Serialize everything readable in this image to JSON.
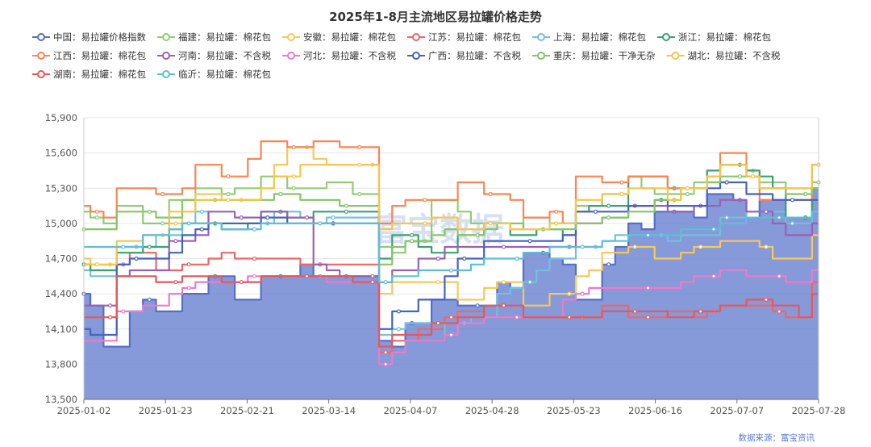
{
  "chart_data": {
    "type": "line",
    "title": "2025年1-8月主流地区易拉罐价格走势",
    "source": "数据来源：富宝资讯",
    "watermark": "富宝数据",
    "xlabel": "",
    "ylabel": "",
    "x_ticks": [
      "2025-01-02",
      "2025-01-23",
      "2025-02-21",
      "2025-03-14",
      "2025-04-07",
      "2025-04-28",
      "2025-05-23",
      "2025-06-16",
      "2025-07-07",
      "2025-07-28"
    ],
    "y_ticks": [
      "13,500",
      "13,800",
      "14,100",
      "14,400",
      "14,700",
      "15,000",
      "15,300",
      "15,600",
      "15,900"
    ],
    "ylim": [
      13500,
      15900
    ],
    "legend_position": "top",
    "area_series": "中国：易拉罐价格指数",
    "series": [
      {
        "name": "中国：易拉罐价格指数",
        "color": "#5470c6",
        "values": [
          14400,
          14300,
          13950,
          13950,
          14250,
          14350,
          14250,
          14250,
          14400,
          14400,
          14550,
          14550,
          14350,
          14350,
          14550,
          14550,
          14550,
          14650,
          14550,
          14550,
          14550,
          14550,
          14550,
          14000,
          13950,
          14150,
          14150,
          14350,
          14350,
          14300,
          14300,
          14300,
          14500,
          14450,
          14750,
          14750,
          14700,
          14650,
          14350,
          14350,
          14650,
          14800,
          15000,
          14950,
          15100,
          15100,
          15100,
          15050,
          15250,
          15250,
          15200,
          15050,
          15200,
          15200,
          15050,
          15050,
          15300
        ]
      },
      {
        "name": "福建：易拉罐：棉花包",
        "color": "#91cc75",
        "values": [
          15100,
          15050,
          15000,
          15150,
          15150,
          15000,
          15000,
          15200,
          15200,
          15300,
          15300,
          15250,
          15300,
          15300,
          15400,
          15400,
          15300,
          15300,
          15300,
          15350,
          15350,
          15250,
          15250,
          14800,
          14750,
          14850,
          14850,
          15200,
          15200,
          15100,
          15000,
          15000,
          15000,
          14950,
          15050,
          15050,
          15000,
          15000,
          15150,
          15150,
          15250,
          15250,
          15400,
          15300,
          15250,
          15250,
          15250,
          15350,
          15350,
          15500,
          15500,
          15450,
          15350,
          15350,
          15300,
          15300,
          15350
        ]
      },
      {
        "name": "安徽：易拉罐：棉花包",
        "color": "#fac858",
        "values": [
          14700,
          14650,
          14650,
          14800,
          14800,
          14900,
          14900,
          15000,
          15100,
          15250,
          15250,
          15200,
          15200,
          15200,
          15300,
          15500,
          15650,
          15650,
          15550,
          15500,
          15500,
          15500,
          15500,
          14400,
          14500,
          14500,
          14500,
          14500,
          14500,
          14350,
          14350,
          14450,
          14500,
          14500,
          14300,
          14300,
          14400,
          14400,
          14550,
          14600,
          14750,
          14750,
          14800,
          14800,
          14700,
          14700,
          14750,
          14800,
          14800,
          14850,
          14850,
          14850,
          14800,
          14700,
          14700,
          14700,
          14900
        ]
      },
      {
        "name": "江苏：易拉罐：棉花包",
        "color": "#ee6666",
        "values": [
          14650,
          14600,
          14600,
          14650,
          14750,
          14750,
          14600,
          14600,
          14650,
          14650,
          14700,
          14750,
          14700,
          14700,
          14700,
          14700,
          14700,
          14650,
          14650,
          14650,
          14650,
          14650,
          14650,
          13900,
          14000,
          14000,
          14100,
          14100,
          14200,
          14250,
          14250,
          14200,
          14200,
          14200,
          14200,
          14200,
          14200,
          14200,
          14200,
          14200,
          14300,
          14300,
          14200,
          14200,
          14200,
          14250,
          14250,
          14200,
          14250,
          14300,
          14300,
          14300,
          14300,
          14250,
          14200,
          14200,
          14500
        ]
      },
      {
        "name": "上海：易拉罐：棉花包",
        "color": "#73c0de",
        "values": [
          14600,
          14550,
          14550,
          14800,
          14800,
          14800,
          14900,
          14900,
          15000,
          15100,
          15000,
          14950,
          14950,
          15000,
          15000,
          15100,
          15100,
          15050,
          15000,
          15050,
          15050,
          15050,
          15050,
          14050,
          14100,
          14150,
          14150,
          14150,
          14050,
          14150,
          14200,
          14200,
          14400,
          14450,
          14500,
          14600,
          14700,
          14700,
          14800,
          14800,
          14850,
          14900,
          14900,
          14900,
          14900,
          14850,
          14900,
          14900,
          14900,
          15050,
          15050,
          15100,
          15100,
          15100,
          15000,
          15000,
          15100
        ]
      },
      {
        "name": "浙江：易拉罐：棉花包",
        "color": "#3ba272",
        "values": [
          14650,
          14600,
          14600,
          14750,
          14750,
          14800,
          14800,
          14950,
          15000,
          15000,
          15000,
          14950,
          14950,
          15000,
          15100,
          15100,
          15050,
          15050,
          15100,
          15100,
          15100,
          15100,
          15100,
          14700,
          14900,
          14900,
          14800,
          14750,
          14750,
          14900,
          14900,
          15000,
          15000,
          14900,
          14900,
          14950,
          14950,
          14900,
          15100,
          15150,
          15150,
          15150,
          15400,
          15400,
          15400,
          15300,
          15300,
          15300,
          15450,
          15500,
          15500,
          15450,
          15400,
          15300,
          15050,
          15050,
          15300
        ]
      },
      {
        "name": "江西：易拉罐：棉花包",
        "color": "#fc8452",
        "values": [
          15150,
          15100,
          15050,
          15300,
          15300,
          15300,
          15250,
          15250,
          15300,
          15500,
          15500,
          15400,
          15400,
          15550,
          15700,
          15700,
          15650,
          15650,
          15700,
          15700,
          15650,
          15650,
          15650,
          15000,
          15150,
          15200,
          15200,
          15200,
          15200,
          15350,
          15350,
          15250,
          15250,
          15200,
          15050,
          15050,
          15100,
          15000,
          15400,
          15400,
          15350,
          15350,
          15400,
          15400,
          15400,
          15300,
          15300,
          15300,
          15400,
          15600,
          15600,
          15400,
          15200,
          15200,
          15200,
          15200,
          15500
        ]
      },
      {
        "name": "河南：易拉罐：不含税",
        "color": "#9a60b4",
        "values": [
          14300,
          14300,
          14300,
          14550,
          14600,
          14600,
          14600,
          14850,
          14850,
          14900,
          15100,
          15100,
          15050,
          15050,
          15100,
          15100,
          15050,
          15050,
          14650,
          14600,
          14550,
          14550,
          14550,
          14500,
          14600,
          14600,
          14700,
          14700,
          14800,
          14800,
          14800,
          14800,
          14800,
          14800,
          14800,
          14800,
          14800,
          14800,
          15000,
          15000,
          15050,
          15050,
          15150,
          15150,
          15150,
          15100,
          15100,
          15150,
          15150,
          15200,
          15200,
          15100,
          15100,
          15000,
          14900,
          14900,
          15000
        ]
      },
      {
        "name": "河北：易拉罐：不含税",
        "color": "#ea7ccc",
        "values": [
          14000,
          14000,
          14000,
          14250,
          14250,
          14300,
          14300,
          14400,
          14450,
          14500,
          14500,
          14500,
          14500,
          14550,
          14550,
          14550,
          14550,
          14550,
          14550,
          14500,
          14500,
          14500,
          14500,
          13800,
          13900,
          14000,
          14000,
          14000,
          14050,
          14150,
          14150,
          14200,
          14200,
          14200,
          14200,
          14200,
          14200,
          14350,
          14400,
          14450,
          14450,
          14450,
          14450,
          14450,
          14450,
          14450,
          14500,
          14550,
          14550,
          14600,
          14600,
          14550,
          14550,
          14550,
          14500,
          14500,
          14600
        ]
      },
      {
        "name": "广西：易拉罐：不含税",
        "color": "#4462c4",
        "values": [
          14100,
          14050,
          14050,
          14650,
          14700,
          14700,
          14700,
          14750,
          14900,
          14950,
          15000,
          15000,
          15000,
          15000,
          15050,
          15050,
          15000,
          15000,
          15000,
          15000,
          15000,
          15000,
          15000,
          14100,
          14250,
          14250,
          14350,
          14350,
          14550,
          14700,
          14700,
          14850,
          14850,
          14850,
          14850,
          14850,
          14850,
          14900,
          15100,
          15100,
          15100,
          15100,
          15150,
          15150,
          15200,
          15150,
          15150,
          15150,
          15300,
          15350,
          15350,
          15250,
          15250,
          15200,
          15200,
          15200,
          15200
        ]
      },
      {
        "name": "重庆：易拉罐：干净无杂",
        "color": "#86c567",
        "values": [
          14950,
          14950,
          14950,
          15100,
          15100,
          15100,
          15050,
          15050,
          15200,
          15200,
          15200,
          15200,
          15200,
          15200,
          15200,
          15250,
          15250,
          15200,
          15200,
          15200,
          15150,
          15150,
          15150,
          14650,
          14800,
          14850,
          14850,
          14900,
          14950,
          14900,
          14900,
          14950,
          15000,
          15000,
          14950,
          14950,
          14950,
          14950,
          15000,
          15000,
          15050,
          15050,
          15100,
          15100,
          15200,
          15200,
          15300,
          15300,
          15350,
          15400,
          15400,
          15400,
          15300,
          15300,
          15250,
          15250,
          15300
        ]
      },
      {
        "name": "湖北：易拉罐：不含税",
        "color": "#f3c64e",
        "values": [
          14650,
          14650,
          14650,
          14850,
          14850,
          14900,
          14900,
          15100,
          15100,
          15200,
          15200,
          15200,
          15200,
          15200,
          15300,
          15400,
          15400,
          15500,
          15500,
          15500,
          15500,
          15500,
          15500,
          14950,
          15000,
          15000,
          15000,
          15050,
          15050,
          14950,
          14950,
          15000,
          15000,
          14950,
          14950,
          14950,
          15000,
          15000,
          15200,
          15200,
          15250,
          15250,
          15300,
          15300,
          15300,
          15200,
          15300,
          15300,
          15400,
          15500,
          15500,
          15400,
          15300,
          15300,
          15300,
          15300,
          15500
        ]
      },
      {
        "name": "湖南：易拉罐：棉花包",
        "color": "#e8575a",
        "values": [
          14200,
          14200,
          14200,
          14550,
          14550,
          14550,
          14500,
          14500,
          14550,
          14550,
          14550,
          14500,
          14500,
          14500,
          14550,
          14550,
          14550,
          14550,
          14550,
          14550,
          14550,
          14500,
          14500,
          13950,
          14050,
          14050,
          14050,
          14150,
          14150,
          14200,
          14200,
          14300,
          14300,
          14300,
          14200,
          14200,
          14200,
          14200,
          14200,
          14200,
          14250,
          14250,
          14250,
          14250,
          14250,
          14200,
          14200,
          14250,
          14250,
          14300,
          14300,
          14350,
          14350,
          14300,
          14300,
          14200,
          14400
        ]
      },
      {
        "name": "临沂：易拉罐：棉花包",
        "color": "#5cbfd9",
        "values": [
          14800,
          14800,
          14800,
          14800,
          14800,
          14900,
          14900,
          14950,
          15000,
          15000,
          15000,
          14950,
          14950,
          14950,
          15000,
          15000,
          15000,
          15000,
          15000,
          15000,
          15000,
          15000,
          15000,
          14500,
          14550,
          14550,
          14600,
          14600,
          14600,
          14600,
          14650,
          14700,
          14700,
          14700,
          14750,
          14750,
          14800,
          14800,
          14800,
          14800,
          14850,
          14850,
          14900,
          14900,
          14900,
          14900,
          14950,
          14950,
          14950,
          15000,
          15000,
          15050,
          15050,
          15050,
          15050,
          15050,
          15100
        ]
      }
    ]
  }
}
